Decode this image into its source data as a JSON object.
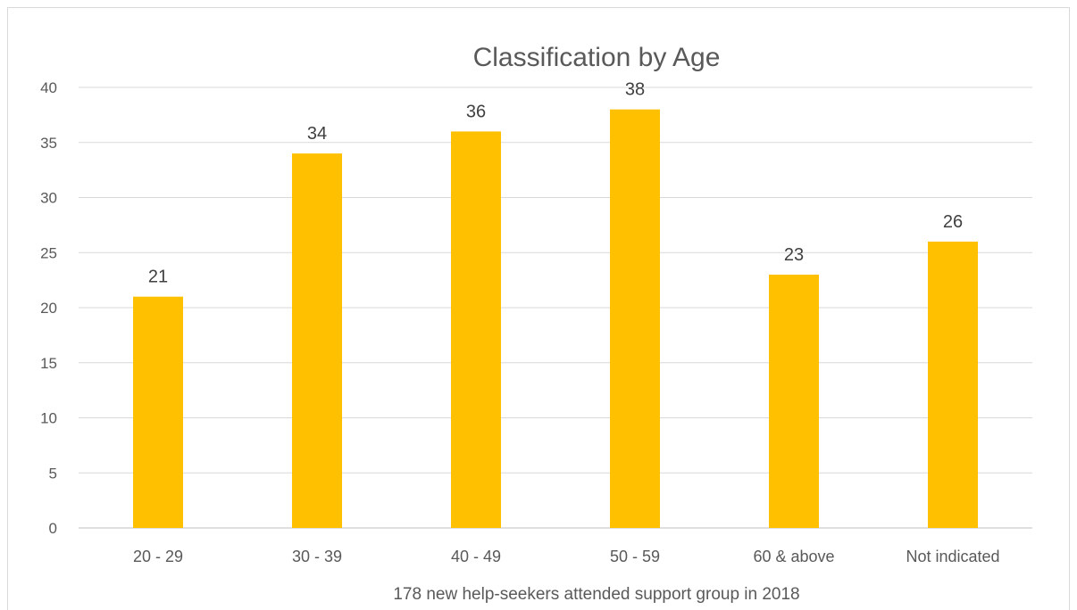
{
  "chart_data": {
    "type": "bar",
    "title": "Classification by Age",
    "xlabel": "178 new help-seekers attended support group in 2018",
    "ylabel": "",
    "categories": [
      "20 - 29",
      "30 - 39",
      "40 - 49",
      "50 - 59",
      "60 & above",
      "Not indicated"
    ],
    "values": [
      21,
      34,
      36,
      38,
      23,
      26
    ],
    "ylim": [
      0,
      40
    ],
    "yticks": [
      0,
      5,
      10,
      15,
      20,
      25,
      30,
      35,
      40
    ],
    "grid": true,
    "legend": "none",
    "bar_color": "#FFC000",
    "data_labels": true
  }
}
